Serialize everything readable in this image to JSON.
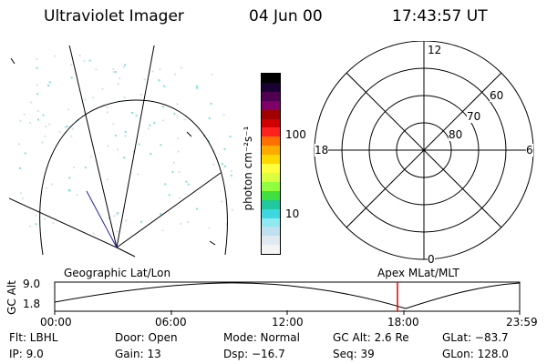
{
  "header": {
    "instrument": "Ultraviolet Imager",
    "date": "04 Jun 00",
    "time": "17:43:57 UT"
  },
  "colorbar": {
    "label": "photon cm⁻²s⁻¹",
    "ticks": [
      "100",
      "10"
    ],
    "colors": [
      "#000000",
      "#1a0033",
      "#500050",
      "#80006a",
      "#a00000",
      "#d00000",
      "#ff2020",
      "#ff7000",
      "#ffaa00",
      "#ffd800",
      "#ffff40",
      "#d8ff40",
      "#90ff40",
      "#40e040",
      "#20c8a0",
      "#40d8e0",
      "#90e8f0",
      "#c0e0f0",
      "#e0e8f0",
      "#f4f4f4"
    ]
  },
  "polar_plot": {
    "mlt_labels": {
      "top": "12",
      "left": "18",
      "right": "6",
      "bottom": "0"
    },
    "lat_labels": [
      "60",
      "70",
      "80"
    ]
  },
  "timeline": {
    "y_axis_label": "GC Alt",
    "y_ticks": [
      "9.0",
      "1.8"
    ],
    "left_caption": "Geographic Lat/Lon",
    "right_caption": "Apex MLat/MLT",
    "x_ticks": [
      "00:00",
      "06:00",
      "12:00",
      "18:00",
      "23:59"
    ],
    "marker_color": "#e00000"
  },
  "info": {
    "filter": "Flt: LBHL",
    "ip": "IP:  9.0",
    "door": "Door: Open",
    "gain": "Gain: 13",
    "mode": "Mode: Normal",
    "dsp": "Dsp:  −16.7",
    "gc_alt": "GC Alt: 2.6 Re",
    "seq": "Seq: 39",
    "glat": "GLat: −83.7",
    "glon": "GLon: 128.0"
  }
}
